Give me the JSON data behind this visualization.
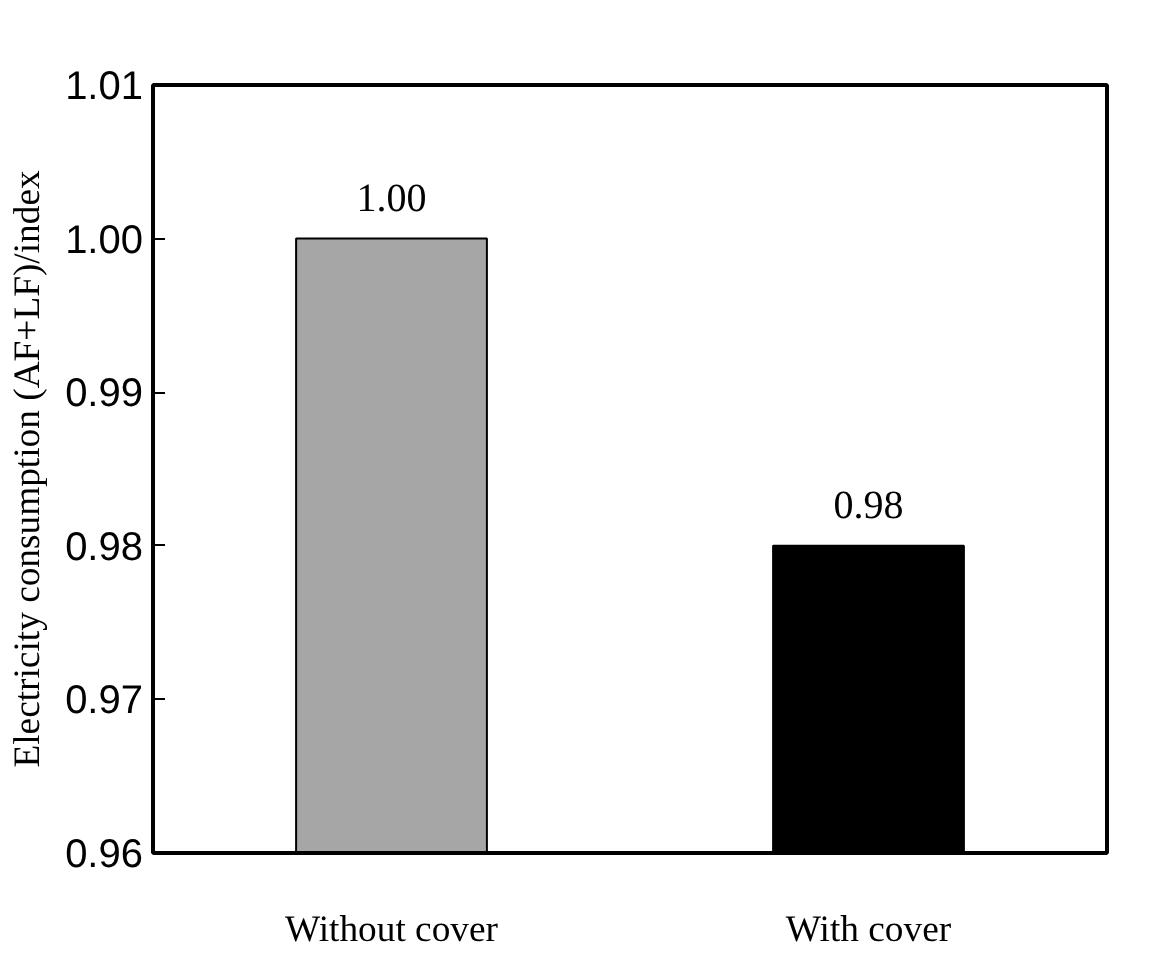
{
  "chart_data": {
    "type": "bar",
    "ylabel": "Electricity consumption (AF+LF)/index",
    "categories": [
      "Without cover",
      "With cover"
    ],
    "values": [
      1.0,
      0.98
    ],
    "colors": [
      "#a6a6a6",
      "#000000"
    ],
    "ylim": [
      0.96,
      1.01
    ],
    "yticks": [
      {
        "value": 0.96,
        "label": "0.96"
      },
      {
        "value": 0.97,
        "label": "0.97"
      },
      {
        "value": 0.98,
        "label": "0.98"
      },
      {
        "value": 0.99,
        "label": "0.99"
      },
      {
        "value": 1.0,
        "label": "1.00"
      },
      {
        "value": 1.01,
        "label": "1.01"
      }
    ],
    "value_labels": [
      "1.00",
      "0.98"
    ],
    "grid": false
  }
}
